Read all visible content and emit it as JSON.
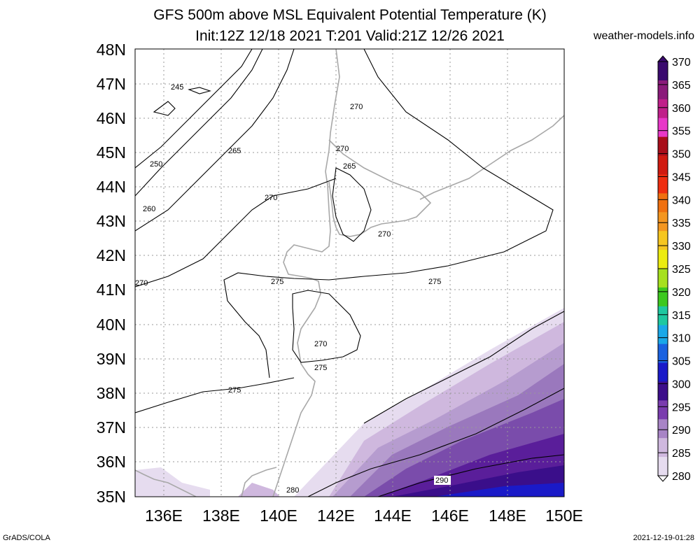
{
  "title_line1": "GFS 500m above MSL Equivalent Potential Temperature (K)",
  "title_line2": "Init:12Z 12/18 2021 T:201 Valid:21Z 12/26 2021",
  "site": "weather-models.info",
  "footer_left": "GrADS/COLA",
  "footer_right": "2021-12-19-01:28",
  "lat_labels": [
    "48N",
    "47N",
    "46N",
    "45N",
    "44N",
    "43N",
    "42N",
    "41N",
    "40N",
    "39N",
    "38N",
    "37N",
    "36N",
    "35N"
  ],
  "lon_labels": [
    "136E",
    "138E",
    "140E",
    "142E",
    "144E",
    "146E",
    "148E",
    "150E"
  ],
  "colorbar": {
    "levels": [
      "370",
      "365",
      "360",
      "355",
      "350",
      "345",
      "340",
      "335",
      "330",
      "325",
      "320",
      "315",
      "310",
      "305",
      "300",
      "295",
      "290",
      "285",
      "280"
    ],
    "colors": [
      "#3a0a6e",
      "#8a1a7a",
      "#c0208a",
      "#e838c8",
      "#a80e1a",
      "#d01a10",
      "#ee2e10",
      "#f07010",
      "#f49620",
      "#f6c620",
      "#ecec10",
      "#a6e01e",
      "#3cc81e",
      "#1ec8a0",
      "#1aa8e8",
      "#1a62e0",
      "#1a1ac8",
      "#3c0e8a",
      "#7a3cae",
      "#a884c6",
      "#cfb8de",
      "#e6dcef"
    ]
  },
  "contour_labels": [
    "245",
    "250",
    "260",
    "265",
    "270",
    "270",
    "265",
    "270",
    "270",
    "270",
    "275",
    "275",
    "270",
    "275",
    "275",
    "280",
    "290",
    "265",
    "270"
  ]
}
